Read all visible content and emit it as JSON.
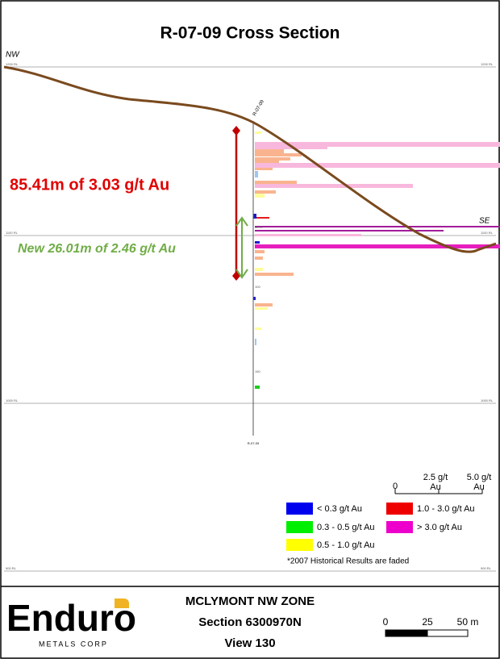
{
  "header": {
    "title": "R-07-09 Cross Section"
  },
  "section": {
    "nw": "NW",
    "se": "SE",
    "hole": "R-07-09",
    "hole_bottom": "R-07-09",
    "elevations": [
      "1200 RL",
      "1100 RL",
      "1000 RL",
      "900 RL"
    ],
    "depths": [
      "50 m",
      "100",
      "150"
    ],
    "intercepts": [
      "85.41m of 3.03 g/t Au",
      "New 26.01m of 2.46 g/t Au"
    ]
  },
  "legend": {
    "scale_labels": [
      "0",
      "2.5 g/t",
      "5.0 g/t"
    ],
    "scale_unit": "Au",
    "items": [
      "< 0.3 g/t Au",
      "0.3 - 0.5 g/t Au",
      "0.5 - 1.0 g/t Au",
      "1.0 - 3.0 g/t Au",
      "> 3.0 g/t Au"
    ],
    "note": "*2007 Historical Results are faded"
  },
  "footer": {
    "logo": "Enduro",
    "logo_sub": "METALS CORP",
    "zone": "MCLYMONT NW ZONE",
    "section": "Section 6300970N",
    "view": "View 130",
    "scale_labels": [
      "0",
      "25",
      "50 m"
    ]
  }
}
